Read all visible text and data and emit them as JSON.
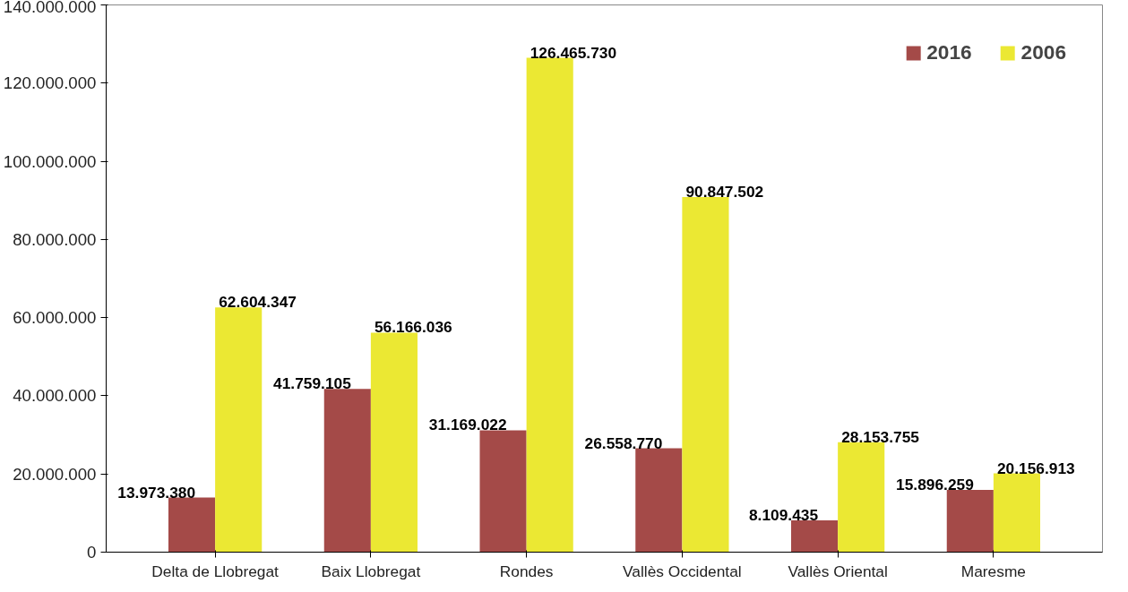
{
  "chart_data": {
    "type": "bar",
    "categories": [
      "Delta de Llobregat",
      "Baix Llobregat",
      "Rondes",
      "Vallès Occidental",
      "Vallès Oriental",
      "Maresme"
    ],
    "series": [
      {
        "name": "2016",
        "color": "#a44a48",
        "values": [
          13973380,
          41759105,
          31169022,
          26558770,
          8109435,
          15896259
        ],
        "value_labels": [
          "13.973.380",
          "41.759.105",
          "31.169.022",
          "26.558.770",
          "8.109.435",
          "15.896.259"
        ]
      },
      {
        "name": "2006",
        "color": "#ebe833",
        "values": [
          62604347,
          56166036,
          126465730,
          90847502,
          28153755,
          20156913
        ],
        "value_labels": [
          "62.604.347",
          "56.166.036",
          "126.465.730",
          "90.847.502",
          "28.153.755",
          "20.156.913"
        ]
      }
    ],
    "ylim": [
      0,
      140000000
    ],
    "yticks": [
      0,
      {
        "value": 20000000,
        "label": "20.000.000"
      },
      {
        "value": 40000000,
        "label": "40.000.000"
      },
      {
        "value": 60000000,
        "label": "60.000.000"
      },
      {
        "value": 80000000,
        "label": "80.000.000"
      },
      {
        "value": 100000000,
        "label": "100.000.000"
      },
      {
        "value": 120000000,
        "label": "120.000.000"
      },
      {
        "value": 140000000,
        "label": "140.000.000"
      }
    ],
    "grid": false,
    "legend": "top right"
  }
}
